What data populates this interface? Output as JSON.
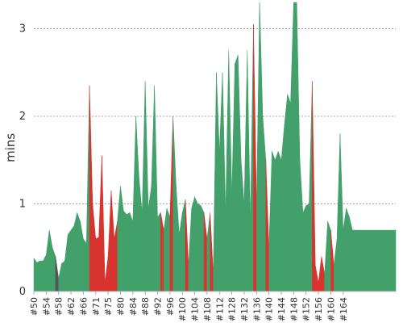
{
  "chart_data": {
    "type": "area",
    "title": "",
    "xlabel": "",
    "ylabel": "mins",
    "ylim": [
      0,
      3.3
    ],
    "yticks": [
      0,
      1,
      2,
      3
    ],
    "grid": true,
    "x": [
      50,
      51,
      52,
      53,
      54,
      55,
      56,
      57,
      58,
      59,
      60,
      61,
      62,
      63,
      64,
      65,
      66,
      67,
      68,
      69,
      70,
      71,
      72,
      73,
      74,
      75,
      76,
      77,
      78,
      79,
      80,
      81,
      82,
      83,
      84,
      85,
      86,
      87,
      88,
      89,
      90,
      91,
      92,
      93,
      94,
      95,
      96,
      97,
      98,
      99,
      100,
      101,
      102,
      103,
      104,
      105,
      106,
      107,
      108,
      109,
      110,
      111,
      112,
      113,
      114,
      115,
      116,
      117,
      118,
      119,
      120,
      121,
      122,
      123,
      124,
      125,
      126,
      127,
      128,
      129,
      130,
      131,
      132,
      133,
      134,
      135,
      136,
      137,
      138,
      139,
      140,
      141,
      142,
      143,
      144,
      145,
      146,
      147,
      148,
      149,
      150,
      151,
      152,
      153,
      154,
      155,
      156,
      157,
      158,
      159,
      160,
      161,
      162,
      163,
      164,
      165,
      166,
      167
    ],
    "xtick_labels": [
      "#50",
      "#54",
      "#58",
      "#62",
      "#66",
      "#71",
      "#75",
      "#80",
      "#84",
      "#88",
      "#92",
      "#96",
      "#100",
      "#104",
      "#108",
      "#112",
      "#128",
      "#132",
      "#136",
      "#140",
      "#144",
      "#148",
      "#152",
      "#156",
      "#160",
      "#164"
    ],
    "xtick_values": [
      50,
      54,
      58,
      62,
      66,
      70,
      74,
      78,
      82,
      86,
      90,
      94,
      98,
      102,
      106,
      110,
      114,
      118,
      122,
      126,
      130,
      134,
      138,
      142,
      146,
      150
    ],
    "values": [
      0.38,
      0.33,
      0.35,
      0.35,
      0.42,
      0.7,
      0.5,
      0.4,
      0.15,
      0.32,
      0.35,
      0.65,
      0.7,
      0.75,
      0.9,
      0.8,
      0.6,
      0.55,
      2.35,
      1.0,
      0.6,
      0.62,
      1.55,
      0.1,
      0.4,
      1.15,
      0.6,
      0.8,
      1.2,
      0.92,
      0.88,
      0.9,
      0.8,
      2.0,
      1.3,
      0.9,
      2.4,
      0.95,
      1.2,
      2.35,
      0.85,
      0.9,
      0.7,
      0.95,
      0.85,
      2.0,
      1.2,
      0.65,
      0.9,
      1.05,
      0.3,
      0.95,
      1.08,
      1.0,
      0.98,
      0.9,
      0.6,
      0.9,
      0.2,
      2.5,
      1.6,
      2.5,
      0.9,
      2.75,
      1.1,
      2.6,
      2.7,
      1.5,
      1.0,
      2.75,
      0.8,
      3.05,
      1.0,
      3.3,
      2.0,
      1.5,
      0.5,
      1.6,
      1.5,
      1.6,
      1.5,
      1.9,
      2.25,
      2.15,
      3.3,
      3.3,
      1.5,
      0.9,
      0.98,
      1.0,
      2.4,
      0.3,
      0.1,
      0.4,
      0.2,
      0.8,
      0.7,
      0.3,
      0.6,
      1.8,
      0.7,
      0.95,
      0.85,
      0.7,
      0.7,
      0.7,
      0.7,
      0.7,
      0.7,
      0.7,
      0.7,
      0.7,
      0.7,
      0.7,
      0.7,
      0.7,
      0.7,
      0.7
    ],
    "status": [
      "g",
      "g",
      "g",
      "g",
      "g",
      "g",
      "g",
      "g",
      "k",
      "g",
      "g",
      "g",
      "g",
      "g",
      "g",
      "g",
      "g",
      "g",
      "g",
      "r",
      "r",
      "r",
      "r",
      "r",
      "r",
      "r",
      "r",
      "r",
      "g",
      "g",
      "g",
      "g",
      "g",
      "g",
      "g",
      "g",
      "g",
      "g",
      "g",
      "g",
      "g",
      "g",
      "r",
      "g",
      "g",
      "r",
      "g",
      "g",
      "g",
      "g",
      "r",
      "g",
      "g",
      "g",
      "g",
      "g",
      "r",
      "g",
      "r",
      "g",
      "g",
      "g",
      "g",
      "g",
      "g",
      "g",
      "g",
      "g",
      "g",
      "g",
      "g",
      "g",
      "r",
      "g",
      "g",
      "g",
      "r",
      "g",
      "g",
      "g",
      "g",
      "g",
      "g",
      "g",
      "g",
      "g",
      "g",
      "g",
      "g",
      "g",
      "g",
      "r",
      "r",
      "r",
      "r",
      "g",
      "g",
      "r",
      "g",
      "g",
      "g",
      "g",
      "g",
      "g",
      "g",
      "g",
      "g",
      "g",
      "g",
      "g",
      "g",
      "g",
      "g",
      "g",
      "g",
      "g",
      "g",
      "g"
    ],
    "colors": {
      "success": "#43a06b",
      "failure": "#d7332f",
      "aborted": "#555555"
    },
    "series": [
      {
        "status": "success",
        "color": "#43a06b"
      },
      {
        "status": "failure",
        "color": "#d7332f"
      },
      {
        "status": "aborted",
        "color": "#555555"
      }
    ]
  }
}
